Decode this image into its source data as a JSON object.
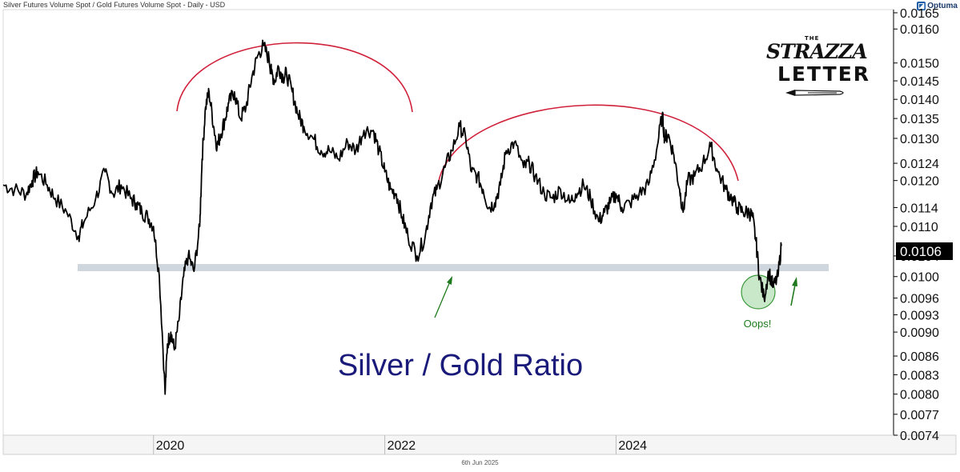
{
  "header": {
    "title": "Silver Futures Volume Spot / Gold Futures Volume Spot - Daily - USD"
  },
  "brand": {
    "name": "Optuma",
    "icon": "optuma-logo-icon"
  },
  "logo": {
    "the": "THE",
    "strazza": "STRAZZA",
    "letter": "LETTER"
  },
  "footer": {
    "date": "6th Jun 2025"
  },
  "colors": {
    "line": "#000000",
    "arc": "#d0213a",
    "band": "#cfd6de",
    "arrow": "#1f7a1f",
    "circle_fill": "#bfe3bf",
    "circle_stroke": "#3c9a3c",
    "title_text": "#1a1a7a",
    "price_box": "#000000"
  },
  "chart_data": {
    "type": "line",
    "title": "Silver / Gold Ratio",
    "scale": "log",
    "ylim": [
      0.0074,
      0.0166
    ],
    "xlim": [
      2018.7,
      2026.4
    ],
    "y_ticks": [
      "0.0165",
      "0.0160",
      "0.0150",
      "0.0145",
      "0.0140",
      "0.0135",
      "0.0130",
      "0.0124",
      "0.0120",
      "0.0114",
      "0.0110",
      "0.0104",
      "0.0100",
      "0.0096",
      "0.0093",
      "0.0090",
      "0.0086",
      "0.0083",
      "0.0080",
      "0.0077",
      "0.0074"
    ],
    "x_ticks": [
      "2020",
      "2022",
      "2024"
    ],
    "x_tick_values": [
      2020.0,
      2022.0,
      2024.0
    ],
    "last_price": "0.0106",
    "support_level": 0.01025,
    "annotations": {
      "oops": "Oops!"
    },
    "series": [
      {
        "x": [
          2018.7,
          2018.8,
          2018.9,
          2018.95,
          2019.0,
          2019.08,
          2019.15,
          2019.25,
          2019.35,
          2019.4,
          2019.5,
          2019.58,
          2019.65,
          2019.72,
          2019.8,
          2019.85,
          2019.9,
          2019.95,
          2020.0,
          2020.05,
          2020.1,
          2020.12,
          2020.15,
          2020.18,
          2020.22,
          2020.26,
          2020.3,
          2020.35,
          2020.4,
          2020.42,
          2020.45,
          2020.48,
          2020.52,
          2020.55,
          2020.58,
          2020.62,
          2020.65,
          2020.7,
          2020.75,
          2020.8,
          2020.85,
          2020.9,
          2020.95,
          2021.0,
          2021.02,
          2021.05,
          2021.08,
          2021.12,
          2021.15,
          2021.2,
          2021.25,
          2021.3,
          2021.38,
          2021.45,
          2021.52,
          2021.6,
          2021.68,
          2021.75,
          2021.82,
          2021.9,
          2021.95,
          2022.0,
          2022.05,
          2022.1,
          2022.15,
          2022.2,
          2022.28,
          2022.35,
          2022.4,
          2022.45,
          2022.52,
          2022.58,
          2022.65,
          2022.7,
          2022.75,
          2022.8,
          2022.85,
          2022.9,
          2022.95,
          2023.0,
          2023.05,
          2023.12,
          2023.2,
          2023.25,
          2023.3,
          2023.38,
          2023.45,
          2023.52,
          2023.6,
          2023.65,
          2023.72,
          2023.78,
          2023.85,
          2023.9,
          2023.95,
          2024.0,
          2024.05,
          2024.12,
          2024.2,
          2024.28,
          2024.35,
          2024.4,
          2024.42,
          2024.45,
          2024.5,
          2024.55,
          2024.58,
          2024.62,
          2024.68,
          2024.75,
          2024.82,
          2024.88,
          2024.95,
          2025.0,
          2025.05,
          2025.1,
          2025.15,
          2025.18,
          2025.21,
          2025.24,
          2025.28,
          2025.32,
          2025.36,
          2025.4,
          2025.43
        ],
        "values": [
          0.0119,
          0.0118,
          0.0117,
          0.012,
          0.0122,
          0.0119,
          0.0116,
          0.0113,
          0.0108,
          0.0111,
          0.0116,
          0.0122,
          0.0117,
          0.0119,
          0.0116,
          0.0115,
          0.0113,
          0.0112,
          0.011,
          0.01,
          0.008,
          0.0088,
          0.009,
          0.0087,
          0.0092,
          0.01,
          0.0104,
          0.0101,
          0.011,
          0.0125,
          0.0138,
          0.0142,
          0.0133,
          0.0128,
          0.0131,
          0.0135,
          0.0139,
          0.0142,
          0.0135,
          0.0138,
          0.0146,
          0.0152,
          0.0155,
          0.0151,
          0.0147,
          0.0145,
          0.0149,
          0.0146,
          0.0147,
          0.0142,
          0.0136,
          0.0133,
          0.013,
          0.0127,
          0.0127,
          0.0125,
          0.0129,
          0.0127,
          0.0132,
          0.0132,
          0.0127,
          0.0122,
          0.0118,
          0.0117,
          0.0112,
          0.0108,
          0.0104,
          0.0108,
          0.0115,
          0.0118,
          0.0123,
          0.0127,
          0.0133,
          0.013,
          0.0122,
          0.0121,
          0.0118,
          0.0114,
          0.0115,
          0.0119,
          0.0127,
          0.0129,
          0.0123,
          0.0124,
          0.0121,
          0.0117,
          0.0116,
          0.0118,
          0.0115,
          0.0117,
          0.0119,
          0.0116,
          0.0111,
          0.0113,
          0.0115,
          0.0117,
          0.0114,
          0.0115,
          0.0117,
          0.0119,
          0.0127,
          0.0136,
          0.013,
          0.0131,
          0.0126,
          0.0118,
          0.0113,
          0.012,
          0.0121,
          0.0124,
          0.0128,
          0.0122,
          0.0118,
          0.0116,
          0.0114,
          0.0113,
          0.0113,
          0.0112,
          0.0107,
          0.01,
          0.0096,
          0.0101,
          0.0098,
          0.01,
          0.0106
        ]
      }
    ]
  }
}
